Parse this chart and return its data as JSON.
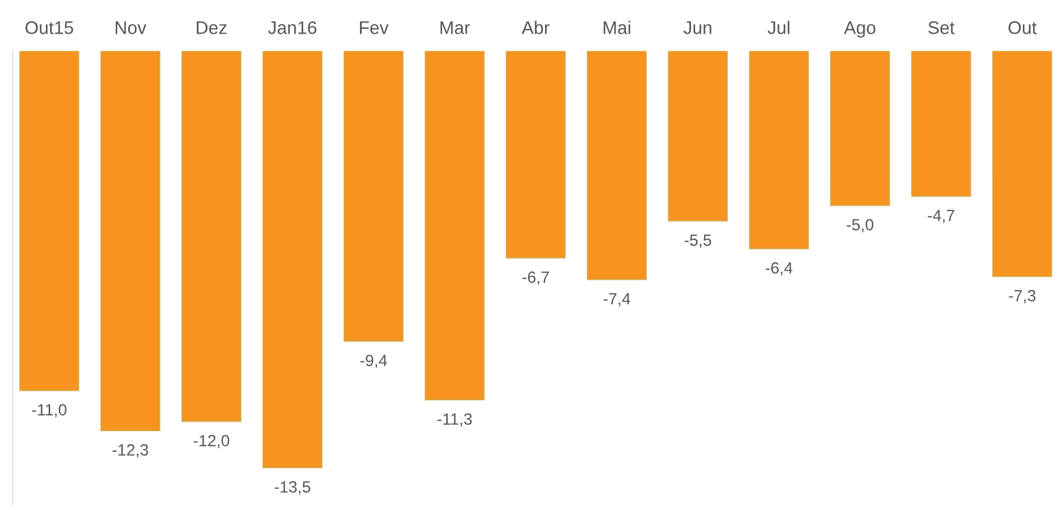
{
  "chart_data": {
    "type": "bar",
    "categories": [
      "Out15",
      "Nov",
      "Dez",
      "Jan16",
      "Fev",
      "Mar",
      "Abr",
      "Mai",
      "Jun",
      "Jul",
      "Ago",
      "Set",
      "Out"
    ],
    "values": [
      -11.0,
      -12.3,
      -12.0,
      -13.5,
      -9.4,
      -11.3,
      -6.7,
      -7.4,
      -5.5,
      -6.4,
      -5.0,
      -4.7,
      -7.3
    ],
    "value_labels": [
      "-11,0",
      "-12,3",
      "-12,0",
      "-13,5",
      "-9,4",
      "-11,3",
      "-6,7",
      "-7,4",
      "-5,5",
      "-6,4",
      "-5,0",
      "-4,7",
      "-7,3"
    ],
    "color": "#f7931e",
    "grid": false,
    "legend": false
  }
}
